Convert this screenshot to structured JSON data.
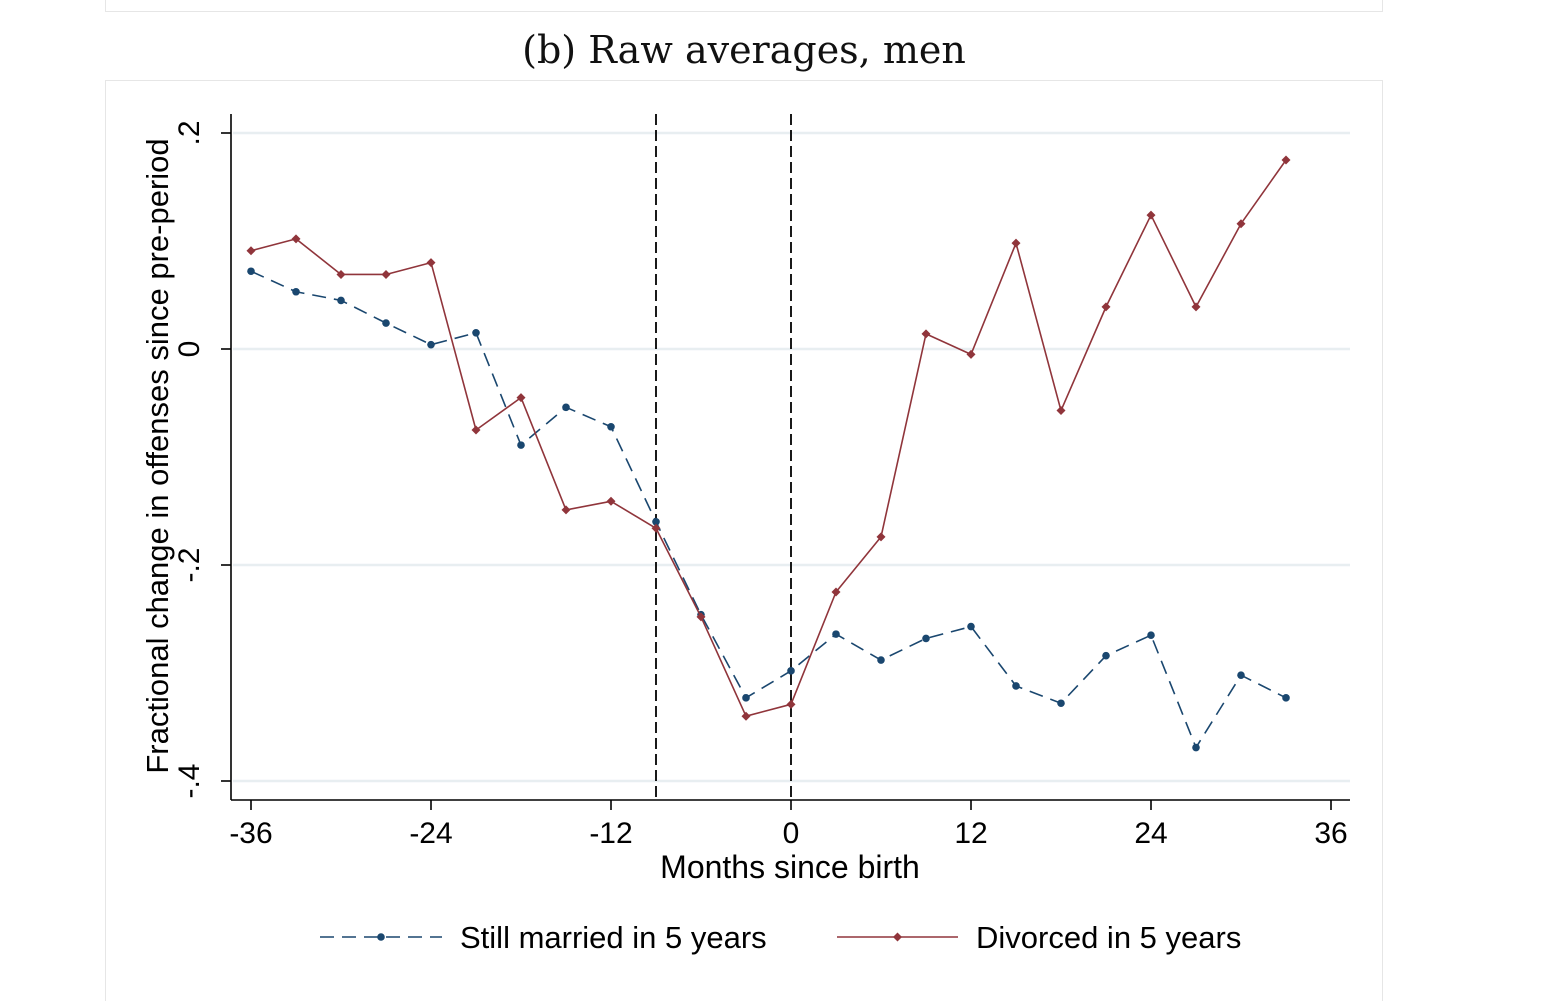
{
  "figure": {
    "title": "(b) Raw averages, men"
  },
  "chart_data": {
    "type": "line",
    "title": "(b) Raw averages, men",
    "xlabel": "Months since birth",
    "ylabel": "Fractional change in offenses since pre-period",
    "xlim": [
      -37.5,
      37
    ],
    "ylim": [
      -0.42,
      0.22
    ],
    "xticks": [
      -36,
      -24,
      -12,
      0,
      12,
      24,
      36
    ],
    "xtick_labels": [
      "-36",
      "-24",
      "-12",
      "0",
      "12",
      "24",
      "36"
    ],
    "yticks": [
      -0.4,
      -0.2,
      0,
      0.2
    ],
    "ytick_labels": [
      "-.4",
      "-.2",
      "0",
      ".2"
    ],
    "grid": true,
    "vlines": [
      -9,
      0
    ],
    "legend_position": "bottom",
    "x": [
      -36,
      -33,
      -30,
      -27,
      -24,
      -21,
      -18,
      -15,
      -12,
      -9,
      -6,
      -3,
      0,
      3,
      6,
      9,
      12,
      15,
      18,
      21,
      24,
      27,
      30,
      33
    ],
    "series": [
      {
        "name": "Still married in 5 years",
        "color": "#1a476f",
        "style": "dashed",
        "marker": "circle",
        "values": [
          0.072,
          0.053,
          0.045,
          0.024,
          0.004,
          0.015,
          -0.089,
          -0.054,
          -0.072,
          -0.16,
          -0.246,
          -0.323,
          -0.298,
          -0.264,
          -0.288,
          -0.268,
          -0.257,
          -0.312,
          -0.328,
          -0.284,
          -0.265,
          -0.369,
          -0.302,
          -0.323
        ]
      },
      {
        "name": "Divorced in 5 years",
        "color": "#90353b",
        "style": "solid",
        "marker": "diamond",
        "values": [
          0.091,
          0.102,
          0.069,
          0.069,
          0.08,
          -0.075,
          -0.045,
          -0.149,
          -0.141,
          -0.166,
          -0.248,
          -0.34,
          -0.329,
          -0.225,
          -0.174,
          0.014,
          -0.005,
          0.098,
          -0.057,
          0.039,
          0.124,
          0.039,
          0.116,
          0.175
        ]
      }
    ]
  }
}
